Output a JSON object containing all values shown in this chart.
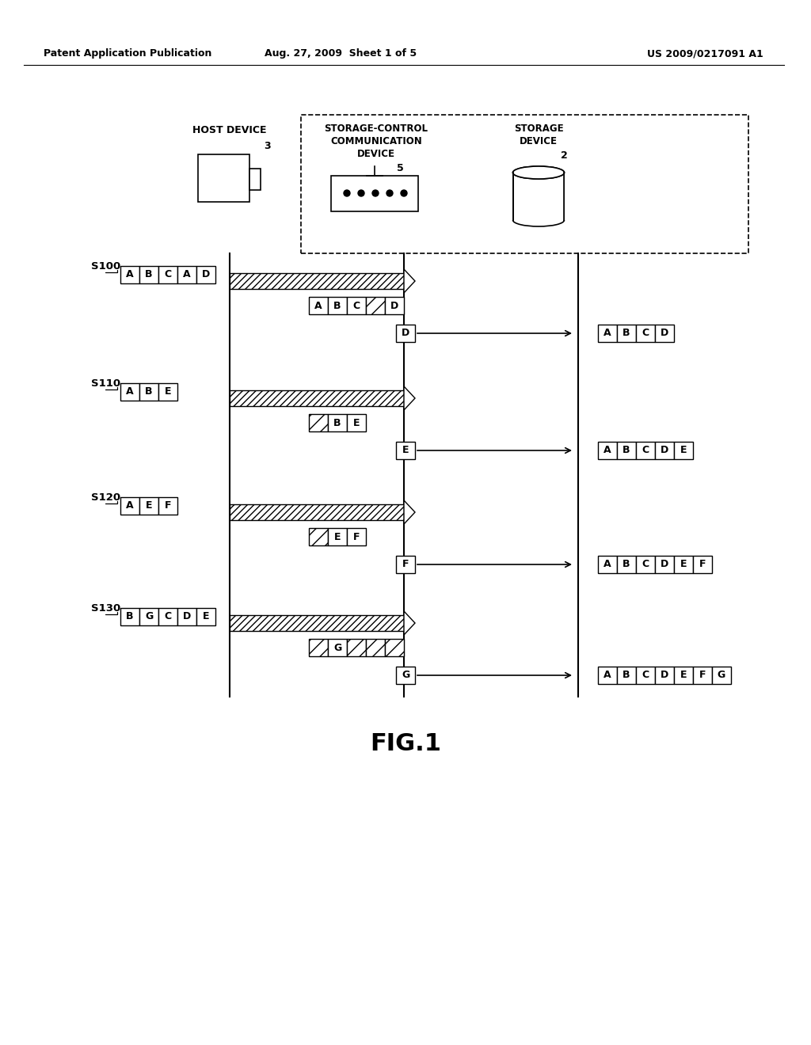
{
  "header_left": "Patent Application Publication",
  "header_mid": "Aug. 27, 2009  Sheet 1 of 5",
  "header_right": "US 2009/0217091 A1",
  "fig_label": "FIG.1",
  "steps": [
    "S100",
    "S110",
    "S120",
    "S130"
  ],
  "step_data_labels": [
    [
      "A",
      "B",
      "C",
      "A",
      "D"
    ],
    [
      "A",
      "B",
      "E"
    ],
    [
      "A",
      "E",
      "F"
    ],
    [
      "B",
      "G",
      "C",
      "D",
      "E"
    ]
  ],
  "middle_col_labels": [
    [
      "A",
      "B",
      "C",
      "*",
      "D"
    ],
    [
      "*",
      "B",
      "E"
    ],
    [
      "*",
      "E",
      "F"
    ],
    [
      "*",
      "G",
      "*",
      "*",
      "*"
    ]
  ],
  "new_data_labels": [
    "D",
    "E",
    "F",
    "G"
  ],
  "storage_labels": [
    [
      "A",
      "B",
      "C",
      "D"
    ],
    [
      "A",
      "B",
      "C",
      "D",
      "E"
    ],
    [
      "A",
      "B",
      "C",
      "D",
      "E",
      "F"
    ],
    [
      "A",
      "B",
      "C",
      "D",
      "E",
      "F",
      "G"
    ]
  ]
}
